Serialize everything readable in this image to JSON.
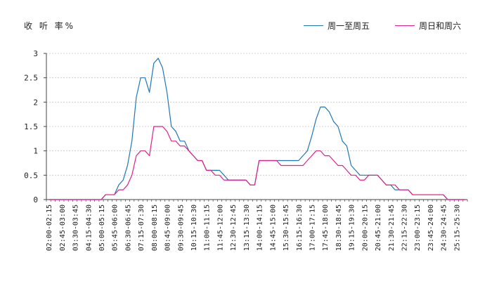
{
  "chart_data": {
    "type": "line",
    "ylabel": "收 听 率%",
    "ylim": [
      0,
      3
    ],
    "yticks": [
      0,
      0.5,
      1,
      1.5,
      2,
      2.5,
      3
    ],
    "ytick_labels": [
      "0",
      "0.5",
      "1",
      "1.5",
      "2",
      "2.5",
      "3"
    ],
    "grid": true,
    "legend_position": "top-right",
    "categories": [
      "02:00-02:15",
      "02:15-02:30",
      "02:30-02:45",
      "02:45-03:00",
      "03:00-03:15",
      "03:15-03:30",
      "03:30-03:45",
      "03:45-04:00",
      "04:00-04:15",
      "04:15-04:30",
      "04:30-04:45",
      "04:45-05:00",
      "05:00-05:15",
      "05:15-05:30",
      "05:30-05:45",
      "05:45-06:00",
      "06:00-06:15",
      "06:15-06:30",
      "06:30-06:45",
      "06:45-07:00",
      "07:00-07:15",
      "07:15-07:30",
      "07:30-07:45",
      "07:45-08:00",
      "08:00-08:15",
      "08:15-08:30",
      "08:30-08:45",
      "08:45-09:00",
      "09:00-09:15",
      "09:15-09:30",
      "09:30-09:45",
      "09:45-10:00",
      "10:00-10:15",
      "10:15-10:30",
      "10:30-10:45",
      "10:45-11:00",
      "11:00-11:15",
      "11:15-11:30",
      "11:30-11:45",
      "11:45-12:00",
      "12:00-12:15",
      "12:15-12:30",
      "12:30-12:45",
      "12:45-13:00",
      "13:00-13:15",
      "13:15-13:30",
      "13:30-13:45",
      "13:45-14:00",
      "14:00-14:15",
      "14:15-14:30",
      "14:30-14:45",
      "14:45-15:00",
      "15:00-15:15",
      "15:15-15:30",
      "15:30-15:45",
      "15:45-16:00",
      "16:00-16:15",
      "16:15-16:30",
      "16:30-16:45",
      "16:45-17:00",
      "17:00-17:15",
      "17:15-17:30",
      "17:30-17:45",
      "17:45-18:00",
      "18:00-18:15",
      "18:15-18:30",
      "18:30-18:45",
      "18:45-19:00",
      "19:00-19:15",
      "19:15-19:30",
      "19:30-19:45",
      "19:45-20:00",
      "20:00-20:15",
      "20:15-20:30",
      "20:30-20:45",
      "20:45-21:00",
      "21:00-21:15",
      "21:15-21:30",
      "21:30-21:45",
      "21:45-22:00",
      "22:00-22:15",
      "22:15-22:30",
      "22:30-22:45",
      "22:45-23:00",
      "23:00-23:15",
      "23:15-23:30",
      "23:30-23:45",
      "23:45-24:00",
      "24:00-24:15",
      "24:15-24:30",
      "24:30-24:45",
      "24:45-25:00",
      "25:00-25:15",
      "25:15-25:30",
      "25:30-25:45",
      "25:45-26:00"
    ],
    "x_tick_labels": [
      "02:00-02:15",
      "02:45-03:00",
      "03:30-03:45",
      "04:15-04:30",
      "05:00-05:15",
      "05:45-06:00",
      "06:30-06:45",
      "07:15-07:30",
      "08:00-08:15",
      "08:45-09:00",
      "09:30-09:45",
      "10:15-10:30",
      "11:00-11:15",
      "11:45-12:00",
      "12:30-12:45",
      "13:15-13:30",
      "14:00-14:15",
      "14:45-15:00",
      "15:30-15:45",
      "16:15-16:30",
      "17:00-17:15",
      "17:45-18:00",
      "18:30-18:45",
      "19:15-19:30",
      "20:00-20:15",
      "20:45-21:00",
      "21:30-21:45",
      "22:15-22:30",
      "23:00-23:15",
      "23:45-24:00",
      "24:30-24:45",
      "25:15-25:30"
    ],
    "series": [
      {
        "name": "周一至周五",
        "color": "#1f78b4",
        "values": [
          0,
          0,
          0,
          0,
          0,
          0,
          0,
          0,
          0,
          0,
          0,
          0,
          0,
          0.1,
          0.1,
          0.1,
          0.3,
          0.4,
          0.7,
          1.2,
          2.1,
          2.5,
          2.5,
          2.2,
          2.8,
          2.9,
          2.7,
          2.2,
          1.5,
          1.4,
          1.2,
          1.2,
          1.0,
          0.9,
          0.8,
          0.8,
          0.6,
          0.6,
          0.6,
          0.6,
          0.5,
          0.4,
          0.4,
          0.4,
          0.4,
          0.4,
          0.3,
          0.3,
          0.8,
          0.8,
          0.8,
          0.8,
          0.8,
          0.8,
          0.8,
          0.8,
          0.8,
          0.8,
          0.9,
          1.0,
          1.3,
          1.65,
          1.9,
          1.9,
          1.8,
          1.6,
          1.5,
          1.2,
          1.1,
          0.7,
          0.6,
          0.5,
          0.5,
          0.5,
          0.5,
          0.5,
          0.4,
          0.3,
          0.3,
          0.2,
          0.2,
          0.2,
          0.2,
          0.1,
          0.1,
          0.1,
          0.1,
          0.1,
          0.1,
          0.1,
          0.1,
          0,
          0,
          0,
          0,
          0
        ]
      },
      {
        "name": "周日和周六",
        "color": "#e0218a",
        "values": [
          0,
          0,
          0,
          0,
          0,
          0,
          0,
          0,
          0,
          0,
          0,
          0,
          0,
          0.1,
          0.1,
          0.1,
          0.2,
          0.2,
          0.3,
          0.5,
          0.9,
          1.0,
          1.0,
          0.9,
          1.5,
          1.5,
          1.5,
          1.4,
          1.2,
          1.2,
          1.1,
          1.1,
          1.0,
          0.9,
          0.8,
          0.8,
          0.6,
          0.6,
          0.5,
          0.5,
          0.4,
          0.4,
          0.4,
          0.4,
          0.4,
          0.4,
          0.3,
          0.3,
          0.8,
          0.8,
          0.8,
          0.8,
          0.8,
          0.7,
          0.7,
          0.7,
          0.7,
          0.7,
          0.7,
          0.8,
          0.9,
          1.0,
          1.0,
          0.9,
          0.9,
          0.8,
          0.7,
          0.7,
          0.6,
          0.5,
          0.5,
          0.4,
          0.4,
          0.5,
          0.5,
          0.5,
          0.4,
          0.3,
          0.3,
          0.3,
          0.2,
          0.2,
          0.2,
          0.1,
          0.1,
          0.1,
          0.1,
          0.1,
          0.1,
          0.1,
          0.1,
          0,
          0,
          0,
          0,
          0
        ]
      }
    ]
  }
}
